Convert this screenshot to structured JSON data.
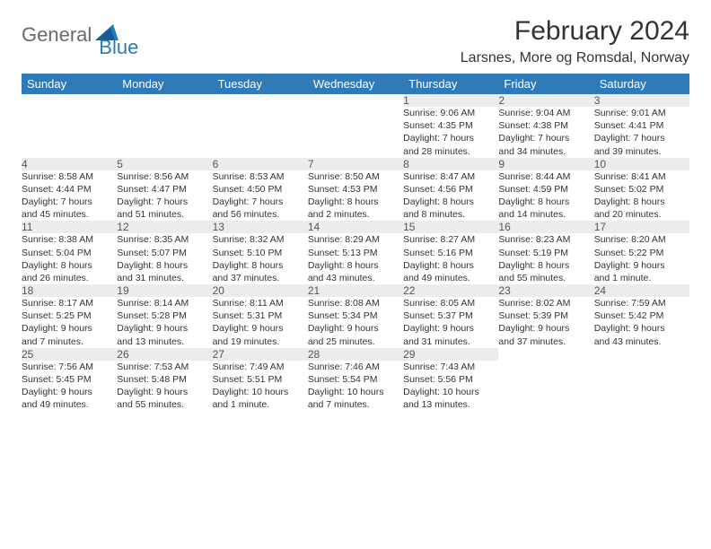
{
  "logo": {
    "part1": "General",
    "part2": "Blue",
    "icon_color": "#2a7ab8"
  },
  "title": "February 2024",
  "location": "Larsnes, More og Romsdal, Norway",
  "colors": {
    "header_bg": "#307ab8",
    "header_text": "#ffffff",
    "daynum_bg": "#ececec",
    "week_border": "#2a6aa5",
    "text": "#333333"
  },
  "dayHeaders": [
    "Sunday",
    "Monday",
    "Tuesday",
    "Wednesday",
    "Thursday",
    "Friday",
    "Saturday"
  ],
  "weeks": [
    [
      null,
      null,
      null,
      null,
      {
        "n": "1",
        "sunrise": "9:06 AM",
        "sunset": "4:35 PM",
        "dl1": "Daylight: 7 hours",
        "dl2": "and 28 minutes."
      },
      {
        "n": "2",
        "sunrise": "9:04 AM",
        "sunset": "4:38 PM",
        "dl1": "Daylight: 7 hours",
        "dl2": "and 34 minutes."
      },
      {
        "n": "3",
        "sunrise": "9:01 AM",
        "sunset": "4:41 PM",
        "dl1": "Daylight: 7 hours",
        "dl2": "and 39 minutes."
      }
    ],
    [
      {
        "n": "4",
        "sunrise": "8:58 AM",
        "sunset": "4:44 PM",
        "dl1": "Daylight: 7 hours",
        "dl2": "and 45 minutes."
      },
      {
        "n": "5",
        "sunrise": "8:56 AM",
        "sunset": "4:47 PM",
        "dl1": "Daylight: 7 hours",
        "dl2": "and 51 minutes."
      },
      {
        "n": "6",
        "sunrise": "8:53 AM",
        "sunset": "4:50 PM",
        "dl1": "Daylight: 7 hours",
        "dl2": "and 56 minutes."
      },
      {
        "n": "7",
        "sunrise": "8:50 AM",
        "sunset": "4:53 PM",
        "dl1": "Daylight: 8 hours",
        "dl2": "and 2 minutes."
      },
      {
        "n": "8",
        "sunrise": "8:47 AM",
        "sunset": "4:56 PM",
        "dl1": "Daylight: 8 hours",
        "dl2": "and 8 minutes."
      },
      {
        "n": "9",
        "sunrise": "8:44 AM",
        "sunset": "4:59 PM",
        "dl1": "Daylight: 8 hours",
        "dl2": "and 14 minutes."
      },
      {
        "n": "10",
        "sunrise": "8:41 AM",
        "sunset": "5:02 PM",
        "dl1": "Daylight: 8 hours",
        "dl2": "and 20 minutes."
      }
    ],
    [
      {
        "n": "11",
        "sunrise": "8:38 AM",
        "sunset": "5:04 PM",
        "dl1": "Daylight: 8 hours",
        "dl2": "and 26 minutes."
      },
      {
        "n": "12",
        "sunrise": "8:35 AM",
        "sunset": "5:07 PM",
        "dl1": "Daylight: 8 hours",
        "dl2": "and 31 minutes."
      },
      {
        "n": "13",
        "sunrise": "8:32 AM",
        "sunset": "5:10 PM",
        "dl1": "Daylight: 8 hours",
        "dl2": "and 37 minutes."
      },
      {
        "n": "14",
        "sunrise": "8:29 AM",
        "sunset": "5:13 PM",
        "dl1": "Daylight: 8 hours",
        "dl2": "and 43 minutes."
      },
      {
        "n": "15",
        "sunrise": "8:27 AM",
        "sunset": "5:16 PM",
        "dl1": "Daylight: 8 hours",
        "dl2": "and 49 minutes."
      },
      {
        "n": "16",
        "sunrise": "8:23 AM",
        "sunset": "5:19 PM",
        "dl1": "Daylight: 8 hours",
        "dl2": "and 55 minutes."
      },
      {
        "n": "17",
        "sunrise": "8:20 AM",
        "sunset": "5:22 PM",
        "dl1": "Daylight: 9 hours",
        "dl2": "and 1 minute."
      }
    ],
    [
      {
        "n": "18",
        "sunrise": "8:17 AM",
        "sunset": "5:25 PM",
        "dl1": "Daylight: 9 hours",
        "dl2": "and 7 minutes."
      },
      {
        "n": "19",
        "sunrise": "8:14 AM",
        "sunset": "5:28 PM",
        "dl1": "Daylight: 9 hours",
        "dl2": "and 13 minutes."
      },
      {
        "n": "20",
        "sunrise": "8:11 AM",
        "sunset": "5:31 PM",
        "dl1": "Daylight: 9 hours",
        "dl2": "and 19 minutes."
      },
      {
        "n": "21",
        "sunrise": "8:08 AM",
        "sunset": "5:34 PM",
        "dl1": "Daylight: 9 hours",
        "dl2": "and 25 minutes."
      },
      {
        "n": "22",
        "sunrise": "8:05 AM",
        "sunset": "5:37 PM",
        "dl1": "Daylight: 9 hours",
        "dl2": "and 31 minutes."
      },
      {
        "n": "23",
        "sunrise": "8:02 AM",
        "sunset": "5:39 PM",
        "dl1": "Daylight: 9 hours",
        "dl2": "and 37 minutes."
      },
      {
        "n": "24",
        "sunrise": "7:59 AM",
        "sunset": "5:42 PM",
        "dl1": "Daylight: 9 hours",
        "dl2": "and 43 minutes."
      }
    ],
    [
      {
        "n": "25",
        "sunrise": "7:56 AM",
        "sunset": "5:45 PM",
        "dl1": "Daylight: 9 hours",
        "dl2": "and 49 minutes."
      },
      {
        "n": "26",
        "sunrise": "7:53 AM",
        "sunset": "5:48 PM",
        "dl1": "Daylight: 9 hours",
        "dl2": "and 55 minutes."
      },
      {
        "n": "27",
        "sunrise": "7:49 AM",
        "sunset": "5:51 PM",
        "dl1": "Daylight: 10 hours",
        "dl2": "and 1 minute."
      },
      {
        "n": "28",
        "sunrise": "7:46 AM",
        "sunset": "5:54 PM",
        "dl1": "Daylight: 10 hours",
        "dl2": "and 7 minutes."
      },
      {
        "n": "29",
        "sunrise": "7:43 AM",
        "sunset": "5:56 PM",
        "dl1": "Daylight: 10 hours",
        "dl2": "and 13 minutes."
      },
      null,
      null
    ]
  ]
}
